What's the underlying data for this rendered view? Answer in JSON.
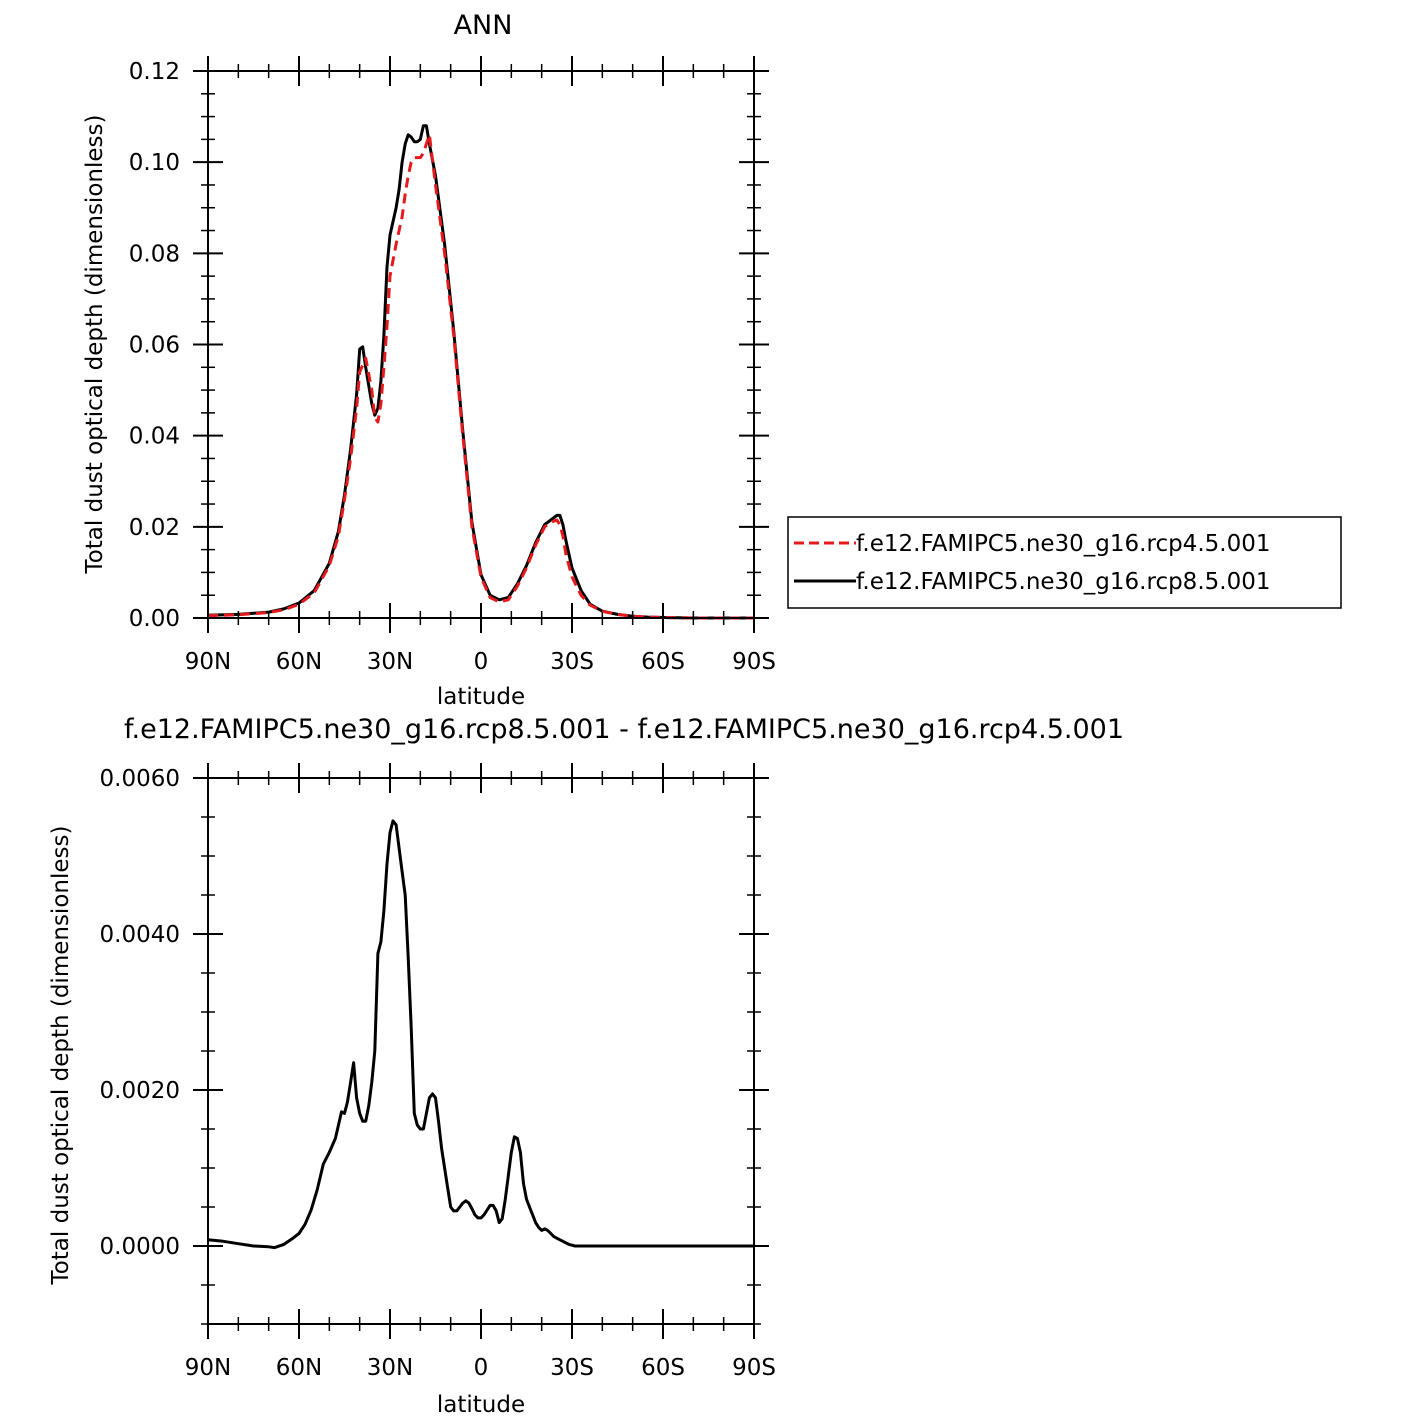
{
  "chart_data": [
    {
      "type": "line",
      "title": "ANN",
      "xlabel": "latitude",
      "ylabel": "Total dust optical depth (dimensionless)",
      "xlim": [
        -90,
        90
      ],
      "ylim": [
        0,
        0.12
      ],
      "x_direction": "north-to-south",
      "xtick_values": [
        -90,
        -60,
        -30,
        0,
        30,
        60,
        90
      ],
      "xtick_labels": [
        "90N",
        "60N",
        "30N",
        "0",
        "30S",
        "60S",
        "90S"
      ],
      "ytick_values": [
        0,
        0.02,
        0.04,
        0.06,
        0.08,
        0.1,
        0.12
      ],
      "ytick_labels": [
        "0.00",
        "0.02",
        "0.04",
        "0.06",
        "0.08",
        "0.10",
        "0.12"
      ],
      "grid": false,
      "legend_placement": "right",
      "series": [
        {
          "name": "f.e12.FAMIPC5.ne30_g16.rcp4.5.001",
          "color": "#e41a1c",
          "style": "dashed",
          "x": [
            -90,
            -80,
            -70,
            -65,
            -60,
            -55,
            -50,
            -47,
            -45,
            -43,
            -41,
            -40,
            -38,
            -36,
            -35,
            -34,
            -33,
            -32,
            -31,
            -30,
            -28,
            -26,
            -25,
            -24,
            -23,
            -22,
            -21,
            -20,
            -19,
            -18,
            -17,
            -15,
            -12,
            -9,
            -6,
            -3,
            0,
            3,
            6,
            9,
            12,
            15,
            18,
            21,
            23,
            25,
            26,
            27,
            28,
            30,
            33,
            36,
            40,
            45,
            50,
            55,
            60,
            70,
            80,
            90
          ],
          "y": [
            0.0005,
            0.0007,
            0.0012,
            0.0018,
            0.003,
            0.0055,
            0.0115,
            0.018,
            0.026,
            0.035,
            0.046,
            0.054,
            0.057,
            0.05,
            0.044,
            0.043,
            0.047,
            0.055,
            0.064,
            0.075,
            0.082,
            0.088,
            0.093,
            0.097,
            0.1,
            0.101,
            0.101,
            0.101,
            0.102,
            0.104,
            0.106,
            0.095,
            0.08,
            0.062,
            0.04,
            0.02,
            0.009,
            0.0045,
            0.0035,
            0.004,
            0.007,
            0.011,
            0.016,
            0.02,
            0.021,
            0.0215,
            0.0205,
            0.018,
            0.014,
            0.009,
            0.005,
            0.0028,
            0.0015,
            0.0008,
            0.0004,
            0.0002,
            0.0001,
            0.0,
            0.0,
            0.0
          ]
        },
        {
          "name": "f.e12.FAMIPC5.ne30_g16.rcp8.5.001",
          "color": "#000000",
          "style": "solid",
          "x": [
            -90,
            -80,
            -70,
            -65,
            -60,
            -55,
            -50,
            -47,
            -45,
            -43,
            -41,
            -40,
            -39,
            -38,
            -36,
            -35,
            -34,
            -33,
            -32,
            -31,
            -30,
            -28,
            -27,
            -26,
            -25,
            -24,
            -23,
            -22,
            -21,
            -20,
            -19,
            -18,
            -17,
            -15,
            -12,
            -9,
            -6,
            -3,
            0,
            3,
            6,
            9,
            12,
            15,
            18,
            21,
            23,
            25,
            26,
            27,
            28,
            30,
            33,
            36,
            40,
            45,
            50,
            55,
            60,
            70,
            80,
            90
          ],
          "y": [
            0.0006,
            0.0008,
            0.0013,
            0.002,
            0.0033,
            0.006,
            0.012,
            0.019,
            0.027,
            0.037,
            0.049,
            0.059,
            0.0595,
            0.055,
            0.047,
            0.0445,
            0.046,
            0.052,
            0.062,
            0.077,
            0.084,
            0.09,
            0.094,
            0.1,
            0.104,
            0.106,
            0.1055,
            0.1045,
            0.1045,
            0.105,
            0.108,
            0.108,
            0.104,
            0.097,
            0.082,
            0.063,
            0.041,
            0.021,
            0.0095,
            0.005,
            0.004,
            0.0045,
            0.0075,
            0.0115,
            0.0165,
            0.0205,
            0.0215,
            0.0225,
            0.0225,
            0.0205,
            0.017,
            0.011,
            0.006,
            0.003,
            0.0015,
            0.0008,
            0.0004,
            0.0002,
            0.0001,
            0.0,
            0.0,
            0.0
          ]
        }
      ]
    },
    {
      "type": "line",
      "title": "f.e12.FAMIPC5.ne30_g16.rcp8.5.001 - f.e12.FAMIPC5.ne30_g16.rcp4.5.001",
      "xlabel": "latitude",
      "ylabel": "Total dust optical depth (dimensionless)",
      "xlim": [
        -90,
        90
      ],
      "ylim": [
        -0.001,
        0.006
      ],
      "x_direction": "north-to-south",
      "xtick_values": [
        -90,
        -60,
        -30,
        0,
        30,
        60,
        90
      ],
      "xtick_labels": [
        "90N",
        "60N",
        "30N",
        "0",
        "30S",
        "60S",
        "90S"
      ],
      "ytick_values": [
        0,
        0.002,
        0.004,
        0.006
      ],
      "ytick_labels": [
        "0.0000",
        "0.0020",
        "0.0040",
        "0.0060"
      ],
      "grid": false,
      "series": [
        {
          "color": "#000000",
          "style": "solid",
          "x": [
            -90,
            -85,
            -80,
            -75,
            -70,
            -68,
            -65,
            -62,
            -60,
            -58,
            -56,
            -54,
            -52,
            -50,
            -48,
            -46,
            -45,
            -44,
            -43,
            -42,
            -41,
            -40,
            -39,
            -38,
            -37,
            -36,
            -35,
            -34,
            -33,
            -32,
            -31,
            -30,
            -29,
            -28,
            -27,
            -26,
            -25,
            -24,
            -23,
            -22,
            -21,
            -20,
            -19,
            -18,
            -17,
            -16,
            -15,
            -14,
            -13,
            -12,
            -11,
            -10,
            -9,
            -8,
            -7,
            -6,
            -5,
            -4,
            -3,
            -2,
            -1,
            0,
            1,
            2,
            3,
            4,
            5,
            6,
            7,
            8,
            9,
            10,
            11,
            12,
            13,
            14,
            15,
            16,
            17,
            18,
            19,
            20,
            21,
            22,
            23,
            24,
            25,
            26,
            27,
            28,
            29,
            30,
            31,
            32,
            33,
            34,
            35,
            36,
            38,
            40,
            42,
            44,
            46,
            48,
            50,
            55,
            60,
            65,
            70,
            75,
            80,
            85,
            90
          ],
          "y": [
            8e-05,
            6e-05,
            3e-05,
            0.0,
            -1e-05,
            -2e-05,
            2e-05,
            0.0001,
            0.00016,
            0.00028,
            0.00046,
            0.00072,
            0.00105,
            0.0012,
            0.00138,
            0.00172,
            0.0017,
            0.00185,
            0.0021,
            0.00235,
            0.0019,
            0.0017,
            0.0016,
            0.0016,
            0.0018,
            0.0021,
            0.0025,
            0.00375,
            0.0039,
            0.0043,
            0.0049,
            0.0053,
            0.00545,
            0.0054,
            0.0051,
            0.0048,
            0.0045,
            0.0037,
            0.0028,
            0.0017,
            0.00155,
            0.0015,
            0.0015,
            0.0017,
            0.0019,
            0.00195,
            0.0019,
            0.0016,
            0.00125,
            0.001,
            0.00075,
            0.0005,
            0.00045,
            0.00045,
            0.0005,
            0.00055,
            0.00058,
            0.00055,
            0.00048,
            0.0004,
            0.00036,
            0.00036,
            0.0004,
            0.00046,
            0.00052,
            0.00052,
            0.00045,
            0.0003,
            0.00035,
            0.0006,
            0.0009,
            0.0012,
            0.0014,
            0.00138,
            0.0012,
            0.0008,
            0.0006,
            0.0005,
            0.0004,
            0.0003,
            0.00024,
            0.0002,
            0.00022,
            0.0002,
            0.00016,
            0.00012,
            0.0001,
            8e-05,
            6e-05,
            4e-05,
            2e-05,
            1e-05,
            0.0,
            0.0,
            0.0,
            0.0,
            0.0,
            0.0,
            0.0,
            0.0,
            0.0,
            0.0,
            0.0,
            0.0,
            0.0,
            0.0,
            0.0,
            0.0,
            0.0,
            0.0,
            0.0,
            0.0,
            0.0
          ]
        }
      ]
    }
  ]
}
